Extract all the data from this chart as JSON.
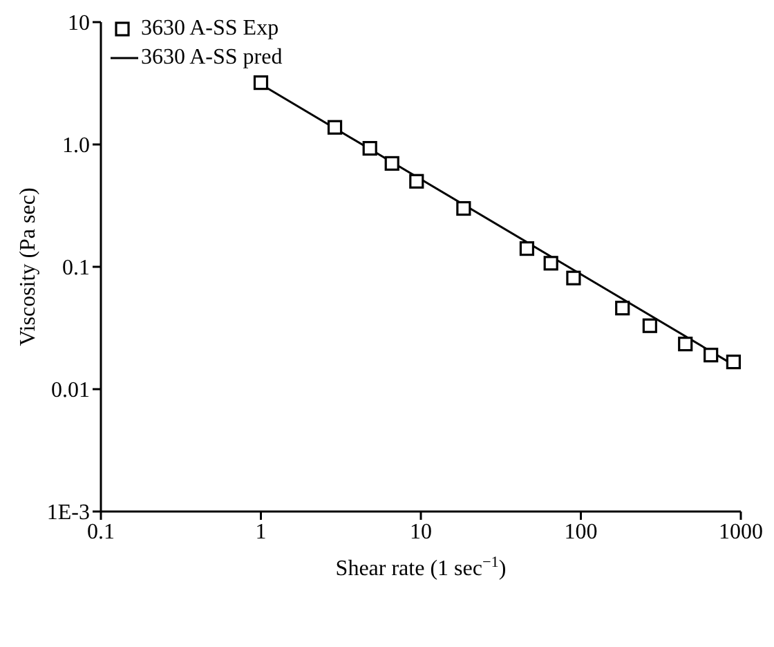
{
  "chart_data": {
    "type": "scatter",
    "xlabel": "Shear rate (1 sec$^{−1}$)",
    "ylabel": "Viscosity (Pa sec)",
    "log": "xy",
    "legend": "top left",
    "xlim": [
      0.1,
      1000
    ],
    "xticks": [
      0.1,
      1,
      10,
      100,
      1000
    ],
    "ylim": [
      0.001,
      10
    ],
    "yticks": [
      {
        "value": 0.001,
        "label": "1E-3"
      },
      0.01,
      0.1,
      {
        "value": 1,
        "label": "1.0"
      },
      10
    ],
    "series": [
      {
        "name": "3630 A-SS Exp",
        "marker": "square",
        "color": "#000000",
        "x": [
          1,
          2.9,
          4.8,
          6.6,
          9.4,
          18.5,
          46,
          65,
          90,
          182,
          270,
          450,
          650,
          900
        ],
        "values": [
          3.2,
          1.38,
          0.93,
          0.7,
          0.5,
          0.3,
          0.141,
          0.107,
          0.081,
          0.046,
          0.033,
          0.0234,
          0.019,
          0.0167
        ]
      },
      {
        "name": "3630 A-SS pred",
        "type": "line",
        "marker": "none",
        "line_style": "solid",
        "color": "#000000",
        "x": [
          1,
          100,
          900
        ],
        "values": [
          3.1,
          0.087,
          0.0158
        ]
      }
    ]
  }
}
